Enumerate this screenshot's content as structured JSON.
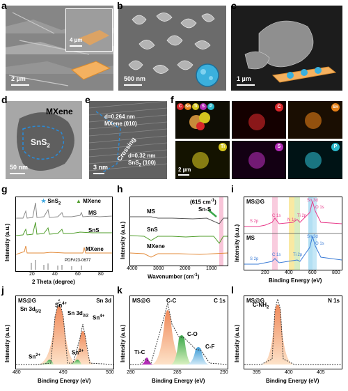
{
  "panel_labels": {
    "a": "a",
    "b": "b",
    "c": "c",
    "d": "d",
    "e": "e",
    "f": "f",
    "g": "g",
    "h": "h",
    "i": "i",
    "j": "j",
    "k": "k",
    "l": "l"
  },
  "a": {
    "scalebar": "2 µm",
    "inset_scalebar": "4 µm"
  },
  "b": {
    "scalebar": "500 nm"
  },
  "c": {
    "scalebar": "1 µm"
  },
  "d": {
    "mxene_label": "MXene",
    "sns2_label": "SnS",
    "sns2_sub": "2",
    "scalebar": "50 nm"
  },
  "e": {
    "lattice1": "d=0.264 nm",
    "lattice1b": "MXene (010)",
    "crossing": "Crossing",
    "lattice2": "d=0.32 nm",
    "lattice2b": "SnS",
    "lattice2b_sub": "2",
    "lattice2b_tail": " (100)",
    "scalebar": "3 nm"
  },
  "f": {
    "elements": [
      {
        "sym": "C",
        "color": "#d8262a"
      },
      {
        "sym": "Sn",
        "color": "#e47f17"
      },
      {
        "sym": "Ti",
        "color": "#d4c51e"
      },
      {
        "sym": "S",
        "color": "#b22bb5"
      },
      {
        "sym": "P",
        "color": "#2bb7c9"
      }
    ],
    "maps": [
      {
        "sym": "C",
        "color": "#d8262a",
        "bg": "#140000"
      },
      {
        "sym": "Sn",
        "color": "#e47f17",
        "bg": "#1a0e02"
      },
      {
        "sym": "Ti",
        "color": "#d4c51e",
        "bg": "#141300"
      },
      {
        "sym": "S",
        "color": "#b22bb5",
        "bg": "#130013"
      },
      {
        "sym": "P",
        "color": "#2bb7c9",
        "bg": "#001315"
      }
    ],
    "scalebar": "2 µm"
  },
  "g": {
    "legend_sns2": "SnS",
    "legend_sns2_sub": "2",
    "legend_mxene": "MXene",
    "curve_labels": [
      "MS",
      "SnS",
      "MXene"
    ],
    "pdf": "PDF#23-0677",
    "xlabel": "2 Theta (degree)",
    "ylabel": "Intensity (a.u.)",
    "xticks": [
      "20",
      "40",
      "60",
      "80"
    ]
  },
  "h": {
    "annot": "(615 cm",
    "annot_sup": "-1",
    "annot_tail": ")",
    "annot2": "Sn-S",
    "curve_labels": [
      "MS",
      "SnS",
      "MXene"
    ],
    "xlabel": "Wavenumber (cm",
    "xlabel_sup": "-1",
    "xlabel_tail": ")",
    "ylabel": "Intensity (a.u.)",
    "xticks": [
      "4000",
      "3000",
      "2000",
      "1000"
    ]
  },
  "i": {
    "top": "MS@G",
    "bottom": "MS",
    "labels_top": [
      "S 2p",
      "C 1s",
      "N 1s",
      "Ti 2p",
      "Sn 3d",
      "O 1s"
    ],
    "labels_bottom": [
      "S 2p",
      "C 1s",
      "Ti 2p",
      "Sn 3d",
      "O 1s"
    ],
    "xlabel": "Binding Energy (eV)",
    "ylabel": "Intensity (a.u.)",
    "xticks": [
      "200",
      "400",
      "600",
      "800"
    ]
  },
  "j": {
    "tag": "MS@G",
    "title": "Sn 3d",
    "l1": "Sn 3d",
    "l1_sub": "5/2",
    "l2": "Sn 3d",
    "l2_sub": "3/2",
    "sn4": "Sn",
    "sn2": "Sn",
    "sup4": "4+",
    "sup2": "2+",
    "xlabel": "Binding Energy (eV)",
    "ylabel": "Intensity (a.u.)",
    "xticks": [
      "480",
      "490",
      "500"
    ]
  },
  "k": {
    "tag": "MS@G",
    "title": "C 1s",
    "cc": "C-C",
    "co": "C-O",
    "cf": "C-F",
    "tic": "Ti-C",
    "xlabel": "Binding Energy (eV)",
    "ylabel": "Intensity (a.u.)",
    "xticks": [
      "280",
      "285",
      "290"
    ]
  },
  "l": {
    "tag": "MS@G",
    "title": "N 1s",
    "cnh2": "C-NH",
    "cnh2_sub": "2",
    "xlabel": "Binding Energy (eV)",
    "ylabel": "Intensity (a.u.)",
    "xticks": [
      "395",
      "400",
      "405"
    ]
  }
}
